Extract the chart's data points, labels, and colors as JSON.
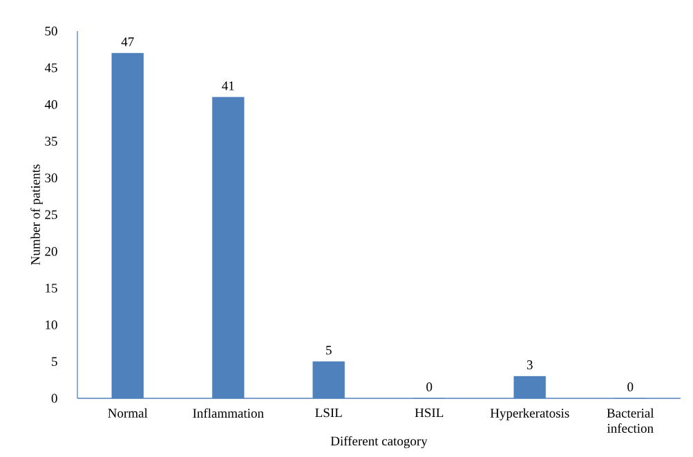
{
  "chart_data": {
    "type": "bar",
    "xlabel": "Different catogory",
    "ylabel": "Number of patients",
    "categories": [
      "Normal",
      "Inflammation",
      "LSIL",
      "HSIL",
      "Hyperkeratosis",
      "Bacterial infection"
    ],
    "values": [
      47,
      41,
      5,
      0,
      3,
      0
    ],
    "color": "#4f81bd",
    "ylim": [
      0,
      50
    ],
    "yticks": [
      0,
      5,
      10,
      15,
      20,
      25,
      30,
      35,
      40,
      45,
      50
    ],
    "data_labels": true,
    "grid": false
  }
}
